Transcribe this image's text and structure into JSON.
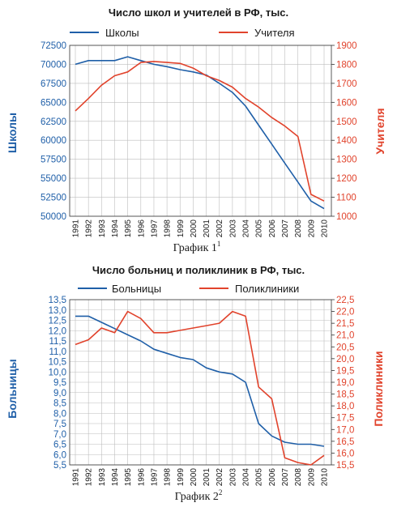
{
  "chart_data": [
    {
      "type": "line",
      "title": "Число школ и учителей в РФ, тыс.",
      "caption": "График 1",
      "caption_sup": "1",
      "x": [
        1991,
        1992,
        1993,
        1994,
        1995,
        1996,
        1997,
        1998,
        1999,
        2000,
        2001,
        2002,
        2003,
        2004,
        2005,
        2006,
        2007,
        2008,
        2009,
        2010
      ],
      "x_tick_labels": [
        "1991",
        "1992",
        "1993",
        "1994",
        "1995",
        "1996",
        "1997",
        "1998",
        "1999",
        "2000",
        "2001",
        "2002",
        "2003",
        "2004",
        "2005",
        "2006",
        "2007",
        "2008",
        "2009",
        "2010"
      ],
      "ylabel_left": "Школы",
      "ylabel_right": "Учителя",
      "ylim_left": [
        50000,
        72500
      ],
      "ylim_right": [
        1000,
        1900
      ],
      "yticks_left": [
        "50000",
        "52500",
        "55000",
        "57500",
        "60000",
        "62500",
        "65000",
        "67500",
        "70000",
        "72500"
      ],
      "yticks_right": [
        "1000",
        "1100",
        "1200",
        "1300",
        "1400",
        "1500",
        "1600",
        "1700",
        "1800",
        "1900"
      ],
      "grid": true,
      "legend": "top",
      "series": [
        {
          "name": "Школы",
          "axis": "left",
          "color": "#1f5fa8",
          "values": [
            70000,
            70500,
            70500,
            70500,
            71000,
            70500,
            70000,
            69700,
            69300,
            69000,
            68600,
            67500,
            66300,
            64500,
            62000,
            59500,
            57000,
            54500,
            52000,
            51000
          ]
        },
        {
          "name": "Учителя",
          "axis": "right",
          "color": "#e1432c",
          "values": [
            1555,
            1620,
            1690,
            1740,
            1760,
            1810,
            1815,
            1810,
            1805,
            1780,
            1740,
            1715,
            1680,
            1620,
            1575,
            1520,
            1475,
            1420,
            1115,
            1080
          ]
        }
      ]
    },
    {
      "type": "line",
      "title": "Число больниц и поликлиник в РФ, тыс.",
      "caption": "График 2",
      "caption_sup": "2",
      "x": [
        1991,
        1992,
        1993,
        1994,
        1995,
        1996,
        1997,
        1998,
        1999,
        2000,
        2001,
        2002,
        2003,
        2004,
        2005,
        2006,
        2007,
        2008,
        2009,
        2010
      ],
      "x_tick_labels": [
        "1991",
        "1992",
        "1993",
        "1994",
        "1995",
        "1996",
        "1997",
        "1998",
        "1999",
        "2000",
        "2001",
        "2002",
        "2003",
        "2004",
        "2005",
        "2006",
        "2007",
        "2008",
        "2009",
        "2010"
      ],
      "ylabel_left": "Больницы",
      "ylabel_right": "Поликлиники",
      "ylim_left": [
        5.5,
        13.5
      ],
      "ylim_right": [
        15.5,
        22.5
      ],
      "yticks_left": [
        "5,5",
        "6,0",
        "6,5",
        "7,0",
        "7,5",
        "8,0",
        "8,5",
        "9,0",
        "9,5",
        "10,0",
        "10,5",
        "11,0",
        "11,5",
        "12,0",
        "12,5",
        "13,0",
        "13,5"
      ],
      "yticks_right": [
        "15,5",
        "16,0",
        "16,5",
        "17,0",
        "17,5",
        "18,0",
        "18,5",
        "19,0",
        "19,5",
        "20,0",
        "20,5",
        "21,0",
        "21,5",
        "22,0",
        "22,5"
      ],
      "grid": true,
      "legend": "top",
      "series": [
        {
          "name": "Больницы",
          "axis": "left",
          "color": "#1f5fa8",
          "values": [
            12.7,
            12.7,
            12.4,
            12.1,
            11.8,
            11.5,
            11.1,
            10.9,
            10.7,
            10.6,
            10.2,
            10.0,
            9.9,
            9.5,
            7.5,
            6.9,
            6.6,
            6.5,
            6.5,
            6.4
          ]
        },
        {
          "name": "Поликлиники",
          "axis": "right",
          "color": "#e1432c",
          "values": [
            20.6,
            20.8,
            21.3,
            21.1,
            22.0,
            21.7,
            21.1,
            21.1,
            21.2,
            21.3,
            21.4,
            21.5,
            22.0,
            21.8,
            18.8,
            18.3,
            15.8,
            15.6,
            15.5,
            15.9
          ]
        }
      ]
    }
  ]
}
